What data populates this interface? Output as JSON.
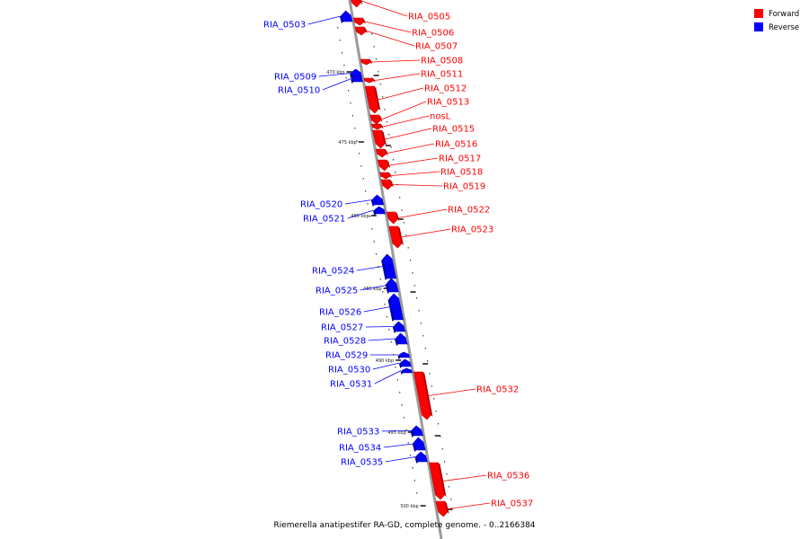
{
  "caption": "Riemerella anatipestifer RA-GD, complete genome. - 0..2166384",
  "legend": [
    {
      "label": "Forward",
      "color": "#ff0000"
    },
    {
      "label": "Reverse",
      "color": "#0000ff"
    }
  ],
  "colors": {
    "forward": "#ff0000",
    "reverse": "#0000ff",
    "backbone": "#9a9a9a"
  },
  "ticks": [
    "470 kbp",
    "475 kbp",
    "480 kbp",
    "485 kbp",
    "490 kbp",
    "495 kbp",
    "500 kbp"
  ],
  "genes": [
    {
      "name": "RIA_0503",
      "strand": "reverse"
    },
    {
      "name": "RIA_0505",
      "strand": "forward"
    },
    {
      "name": "RIA_0506",
      "strand": "forward"
    },
    {
      "name": "RIA_0507",
      "strand": "forward"
    },
    {
      "name": "RIA_0508",
      "strand": "forward"
    },
    {
      "name": "RIA_0509",
      "strand": "reverse"
    },
    {
      "name": "RIA_0510",
      "strand": "reverse"
    },
    {
      "name": "RIA_0511",
      "strand": "forward"
    },
    {
      "name": "RIA_0512",
      "strand": "forward"
    },
    {
      "name": "RIA_0513",
      "strand": "forward"
    },
    {
      "name": "nosL",
      "strand": "forward"
    },
    {
      "name": "RIA_0515",
      "strand": "forward"
    },
    {
      "name": "RIA_0516",
      "strand": "forward"
    },
    {
      "name": "RIA_0517",
      "strand": "forward"
    },
    {
      "name": "RIA_0518",
      "strand": "forward"
    },
    {
      "name": "RIA_0519",
      "strand": "forward"
    },
    {
      "name": "RIA_0520",
      "strand": "reverse"
    },
    {
      "name": "RIA_0521",
      "strand": "reverse"
    },
    {
      "name": "RIA_0522",
      "strand": "forward"
    },
    {
      "name": "RIA_0523",
      "strand": "forward"
    },
    {
      "name": "RIA_0524",
      "strand": "reverse"
    },
    {
      "name": "RIA_0525",
      "strand": "reverse"
    },
    {
      "name": "RIA_0526",
      "strand": "reverse"
    },
    {
      "name": "RIA_0527",
      "strand": "reverse"
    },
    {
      "name": "RIA_0528",
      "strand": "reverse"
    },
    {
      "name": "RIA_0529",
      "strand": "reverse"
    },
    {
      "name": "RIA_0530",
      "strand": "reverse"
    },
    {
      "name": "RIA_0531",
      "strand": "reverse"
    },
    {
      "name": "RIA_0532",
      "strand": "forward"
    },
    {
      "name": "RIA_0533",
      "strand": "reverse"
    },
    {
      "name": "RIA_0534",
      "strand": "reverse"
    },
    {
      "name": "RIA_0535",
      "strand": "reverse"
    },
    {
      "name": "RIA_0536",
      "strand": "forward"
    },
    {
      "name": "RIA_0537",
      "strand": "forward"
    }
  ]
}
